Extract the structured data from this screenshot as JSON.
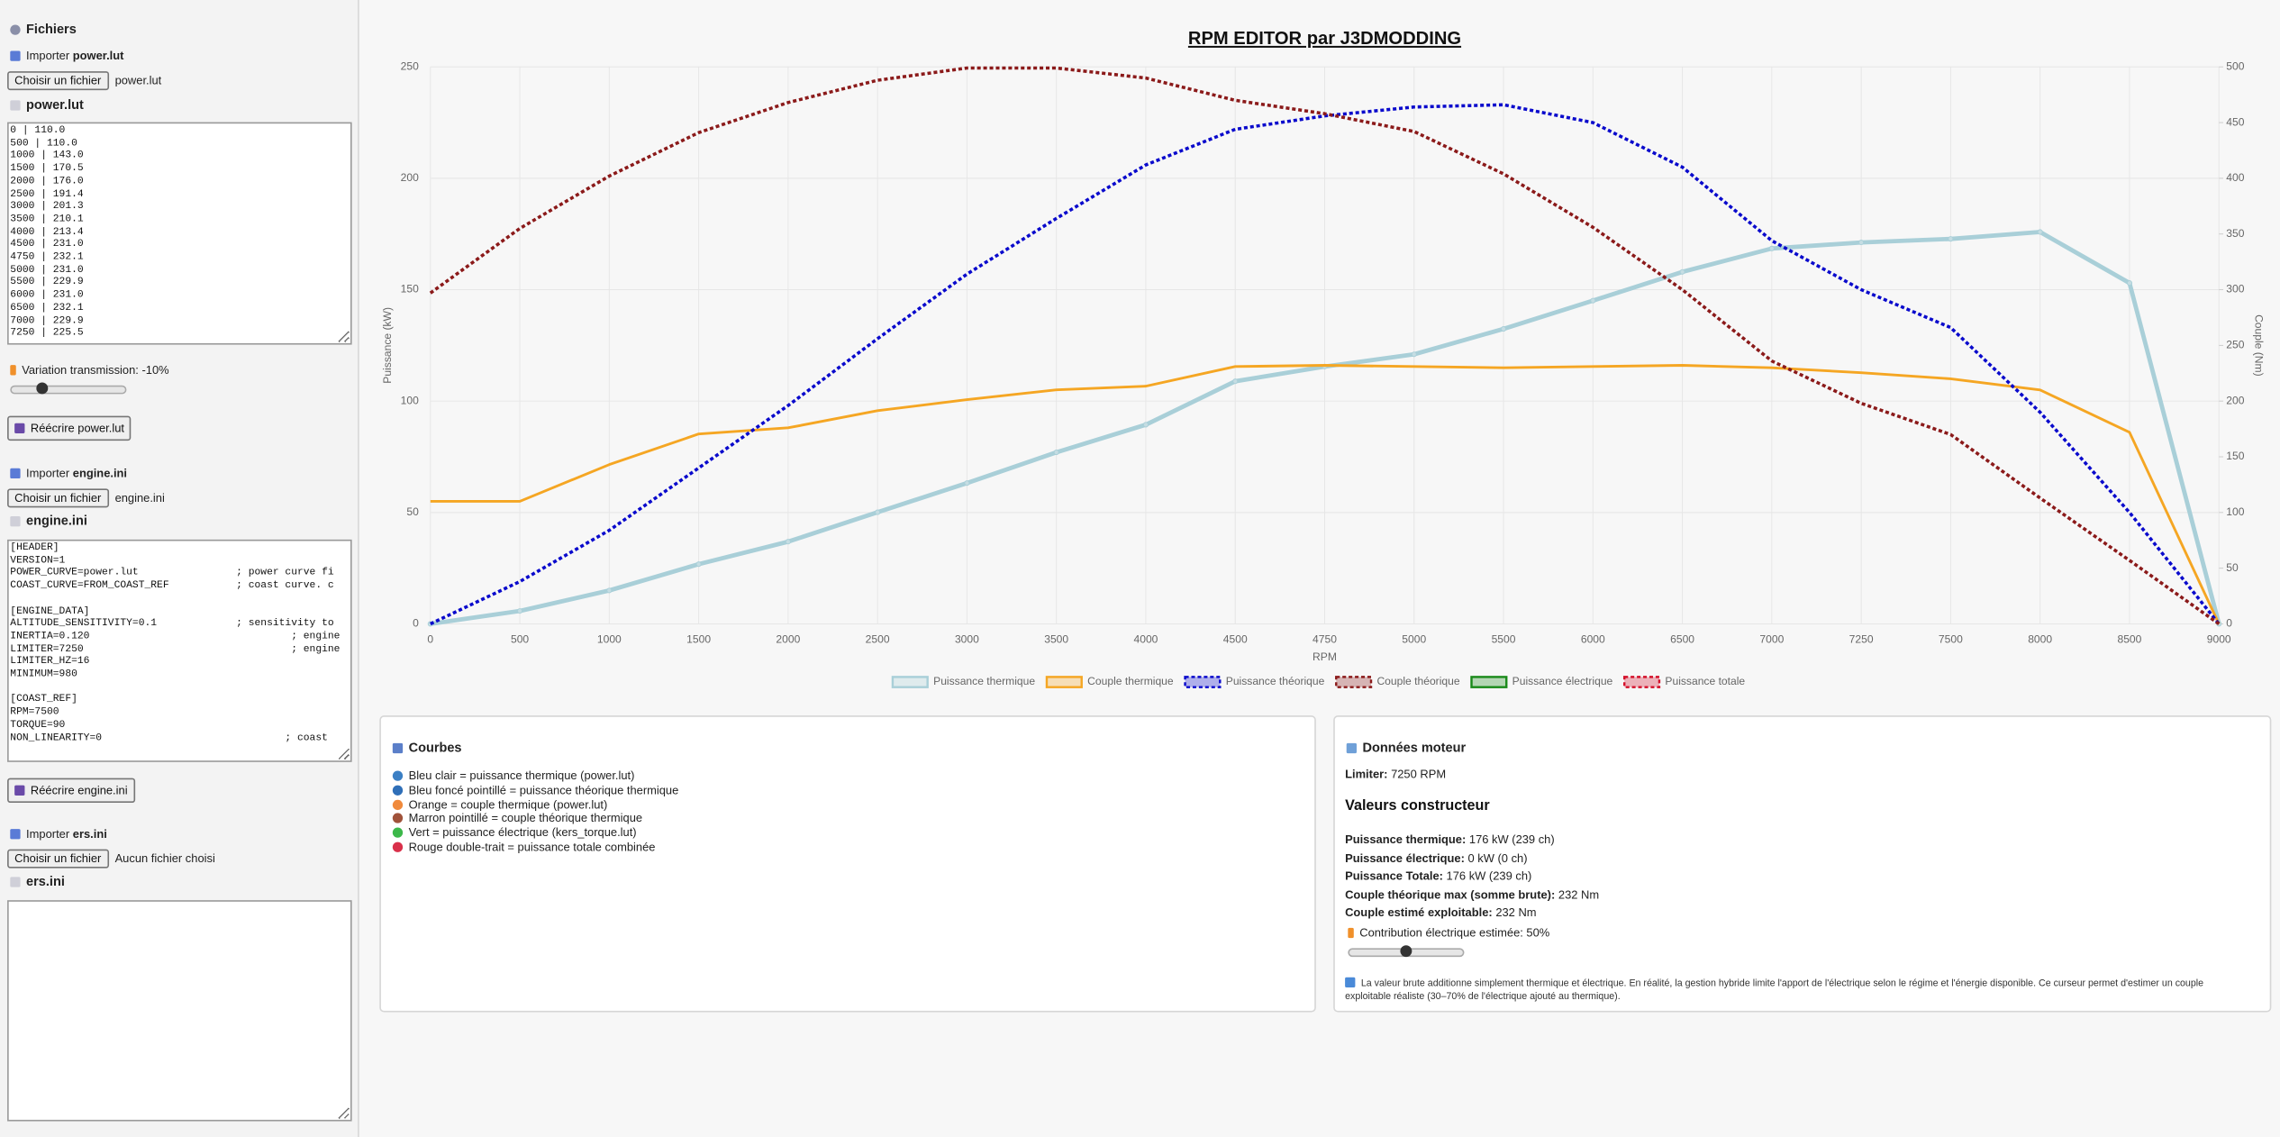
{
  "sidebar": {
    "title": "Fichiers",
    "power": {
      "import_label": "Importer",
      "import_file": "power.lut",
      "button": "Choisir un fichier",
      "chosen": "power.lut",
      "heading": "power.lut",
      "content": "0 | 110.0\n500 | 110.0\n1000 | 143.0\n1500 | 170.5\n2000 | 176.0\n2500 | 191.4\n3000 | 201.3\n3500 | 210.1\n4000 | 213.4\n4500 | 231.0\n4750 | 232.1\n5000 | 231.0\n5500 | 229.9\n6000 | 231.0\n6500 | 232.1\n7000 | 229.9\n7250 | 225.5",
      "variation": "Variation transmission: -10%",
      "rewrite": "Réécrire power.lut"
    },
    "engine": {
      "import_label": "Importer",
      "import_file": "engine.ini",
      "button": "Choisir un fichier",
      "chosen": "engine.ini",
      "heading": "engine.ini",
      "content": "[HEADER]\nVERSION=1\nPOWER_CURVE=power.lut                ; power curve fi\nCOAST_CURVE=FROM_COAST_REF           ; coast curve. c\n\n[ENGINE_DATA]\nALTITUDE_SENSITIVITY=0.1             ; sensitivity to\nINERTIA=0.120                                 ; engine\nLIMITER=7250                                  ; engine\nLIMITER_HZ=16\nMINIMUM=980\n\n[COAST_REF]\nRPM=7500\nTORQUE=90\nNON_LINEARITY=0                              ; coast",
      "rewrite": "Réécrire engine.ini"
    },
    "ers": {
      "import_label": "Importer",
      "import_file": "ers.ini",
      "button": "Choisir un fichier",
      "chosen": "Aucun fichier choisi",
      "heading": "ers.ini"
    }
  },
  "chart_data": {
    "type": "line",
    "title": "RPM EDITOR par J3DMODDING",
    "x_label": "RPM",
    "y_label": "Puissance (kW)",
    "y2_label": "Couple (Nm)",
    "categories": [
      0,
      500,
      1000,
      1500,
      2000,
      2500,
      3000,
      3500,
      4000,
      4500,
      4750,
      5000,
      5500,
      6000,
      6500,
      7000,
      7250,
      7500,
      8000,
      8500,
      9000
    ],
    "ylim": [
      0,
      250
    ],
    "yticks": [
      0,
      50,
      100,
      150,
      200,
      250
    ],
    "y2lim": [
      0,
      500
    ],
    "y2ticks": [
      0,
      50,
      100,
      150,
      200,
      250,
      300,
      350,
      400,
      450,
      500
    ],
    "grid": true,
    "legend": "bottom",
    "series": [
      {
        "name": "Puissance thermique",
        "color": "#a9cfd8",
        "axis": "y",
        "style": "solid",
        "width": 3,
        "values": [
          0,
          5.8,
          15.0,
          26.8,
          36.9,
          50.1,
          63.2,
          77.0,
          89.4,
          108.9,
          115.5,
          121.0,
          132.4,
          145.1,
          158.0,
          168.5,
          171.2,
          172.8,
          175.9,
          153.0,
          0
        ]
      },
      {
        "name": "Couple thermique",
        "color": "#f5a623",
        "axis": "y2",
        "style": "solid",
        "width": 1.8,
        "values": [
          110.0,
          110.0,
          143.0,
          170.5,
          176.0,
          191.4,
          201.3,
          210.1,
          213.4,
          231.0,
          232.1,
          231.0,
          229.9,
          231.0,
          232.1,
          229.9,
          225.5,
          220,
          210,
          172,
          0
        ]
      },
      {
        "name": "Puissance théorique",
        "color": "#0a0acc",
        "axis": "y",
        "style": "dotted",
        "width": 2.2,
        "values": [
          0,
          19,
          42,
          70,
          98,
          128,
          157,
          182,
          206,
          222,
          228,
          232,
          233,
          225,
          205,
          172,
          150,
          133,
          95,
          50,
          0
        ]
      },
      {
        "name": "Couple théorique",
        "color": "#8b1a1a",
        "axis": "y2",
        "style": "dotted",
        "width": 2.2,
        "values": [
          297,
          355,
          402,
          441,
          468,
          488,
          499,
          499,
          490,
          470,
          458,
          442,
          404,
          356,
          300,
          236,
          198,
          170,
          113,
          57,
          0
        ]
      },
      {
        "name": "Puissance électrique",
        "color": "#1a8a1a",
        "axis": "y",
        "style": "solid",
        "width": 2,
        "values": [
          null,
          null,
          null,
          null,
          null,
          null,
          null,
          null,
          null,
          null,
          null,
          null,
          null,
          null,
          null,
          null,
          null,
          null,
          null,
          null,
          null
        ]
      },
      {
        "name": "Puissance totale",
        "color": "#d4102a",
        "axis": "y",
        "style": "dotted",
        "width": 2,
        "values": [
          null,
          null,
          null,
          null,
          null,
          null,
          null,
          null,
          null,
          null,
          null,
          null,
          null,
          null,
          null,
          null,
          null,
          null,
          null,
          null,
          null
        ]
      }
    ]
  },
  "curves_panel": {
    "title": "Courbes",
    "items": [
      {
        "text": "Bleu clair = puissance thermique (power.lut)",
        "color": "#3b7fc4"
      },
      {
        "text": "Bleu foncé pointillé = puissance théorique thermique",
        "color": "#2f6fb8"
      },
      {
        "text": "Orange = couple thermique (power.lut)",
        "color": "#f08a3c"
      },
      {
        "text": "Marron pointillé = couple théorique thermique",
        "color": "#a0523a"
      },
      {
        "text": "Vert = puissance électrique (kers_torque.lut)",
        "color": "#3cb84a"
      },
      {
        "text": "Rouge double-trait = puissance totale combinée",
        "color": "#d9304a"
      }
    ]
  },
  "engine_panel": {
    "title": "Données moteur",
    "limiter_label": "Limiter:",
    "limiter_value": "7250 RPM",
    "heading": "Valeurs constructeur",
    "rows": [
      {
        "label": "Puissance thermique:",
        "value": "176 kW (239 ch)"
      },
      {
        "label": "Puissance électrique:",
        "value": "0 kW (0 ch)"
      },
      {
        "label": "Puissance Totale:",
        "value": "176 kW (239 ch)"
      },
      {
        "label": "Couple théorique max (somme brute):",
        "value": "232 Nm"
      },
      {
        "label": "Couple estimé exploitable:",
        "value": "232 Nm"
      }
    ],
    "contribution": "Contribution électrique estimée: 50%",
    "note": "La valeur brute additionne simplement thermique et électrique. En réalité, la gestion hybride limite l'apport de l'électrique selon le régime et l'énergie disponible. Ce curseur permet d'estimer un couple exploitable réaliste (30–70% de l'électrique ajouté au thermique)."
  }
}
